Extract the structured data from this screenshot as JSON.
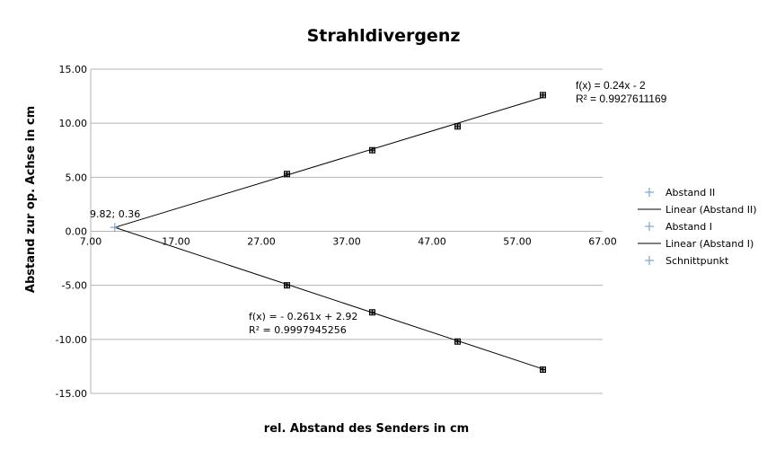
{
  "chart_data": {
    "type": "scatter",
    "title": "Strahldivergenz",
    "xlabel": "rel. Abstand des Senders in cm",
    "ylabel": "Abstand zur op. Achse in cm",
    "xlim": [
      7.0,
      67.0
    ],
    "ylim": [
      -15.0,
      15.0
    ],
    "x_ticks": [
      "7.00",
      "17.00",
      "27.00",
      "37.00",
      "47.00",
      "57.00",
      "67.00"
    ],
    "y_ticks": [
      "15.00",
      "10.00",
      "5.00",
      "0.00",
      "-5.00",
      "-10.00",
      "-15.00"
    ],
    "grid": "horizontal",
    "legend_position": "right",
    "series": [
      {
        "name": "Abstand II",
        "kind": "points",
        "color": "#000000",
        "marker": "cross-square",
        "points": [
          [
            30,
            5.3
          ],
          [
            40,
            7.5
          ],
          [
            50,
            9.7
          ],
          [
            60,
            12.6
          ]
        ]
      },
      {
        "name": "Linear (Abstand II)",
        "kind": "trendline",
        "color": "#000000",
        "slope": 0.24,
        "intercept": -2,
        "x_range": [
          9.82,
          60
        ]
      },
      {
        "name": "Abstand I",
        "kind": "points",
        "color": "#000000",
        "marker": "cross-square",
        "points": [
          [
            30,
            -5.0
          ],
          [
            40,
            -7.5
          ],
          [
            50,
            -10.2
          ],
          [
            60,
            -12.8
          ]
        ]
      },
      {
        "name": "Linear (Abstand I)",
        "kind": "trendline",
        "color": "#000000",
        "slope": -0.261,
        "intercept": 2.92,
        "x_range": [
          9.82,
          60
        ]
      },
      {
        "name": "Schnittpunkt",
        "kind": "points",
        "color": "#6fa8dc",
        "marker": "plus",
        "points": [
          [
            9.82,
            0.36
          ]
        ]
      }
    ],
    "legend_markers": [
      "plus",
      "line",
      "plus",
      "line",
      "plus"
    ],
    "legend_marker_color": "#6fa8dc",
    "annotations": [
      {
        "id": "eq2",
        "lines": [
          "f(x) = 0.24x - 2",
          "R² = 0.9927611169"
        ]
      },
      {
        "id": "eq1",
        "lines": [
          "f(x) =  - 0.261x + 2.92",
          "R² = 0.9997945256"
        ]
      },
      {
        "id": "point",
        "lines": [
          "9.82; 0.36"
        ]
      }
    ]
  }
}
